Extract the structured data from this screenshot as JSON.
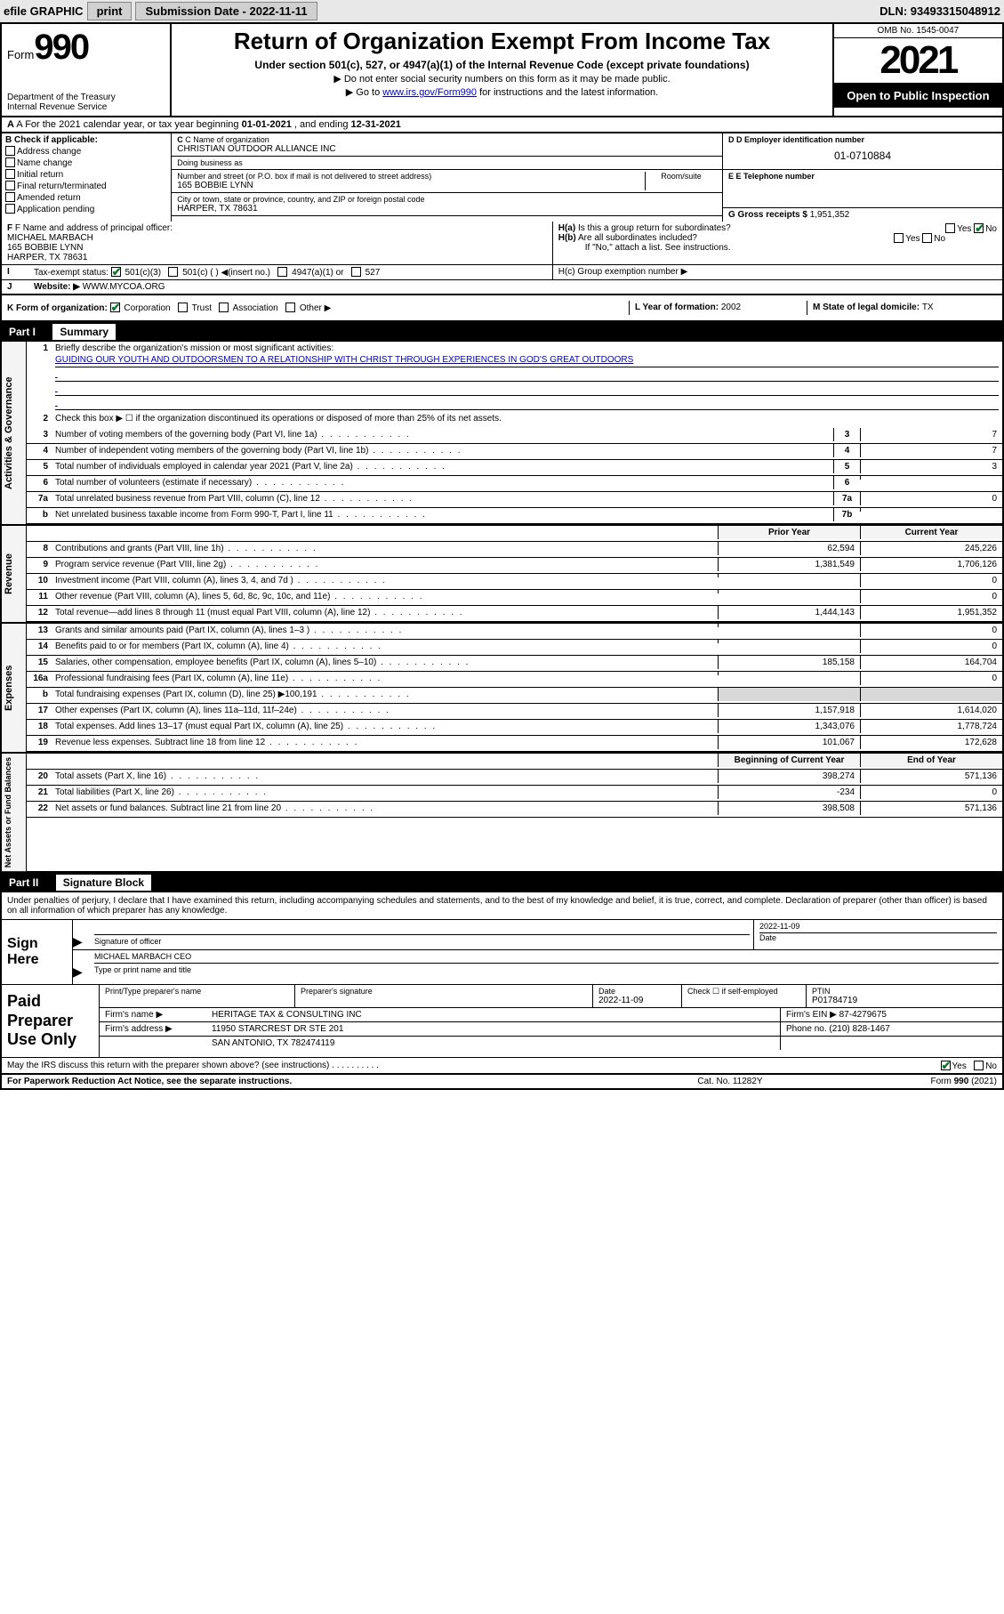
{
  "topbar": {
    "efile": "efile GRAPHIC",
    "print": "print",
    "submission_label": "Submission Date - 2022-11-11",
    "dln_label": "DLN: 93493315048912"
  },
  "header": {
    "form_prefix": "Form",
    "form_number": "990",
    "dept": "Department of the Treasury",
    "irs": "Internal Revenue Service",
    "title": "Return of Organization Exempt From Income Tax",
    "subtitle": "Under section 501(c), 527, or 4947(a)(1) of the Internal Revenue Code (except private foundations)",
    "no_ssn": "Do not enter social security numbers on this form as it may be made public.",
    "goto_pre": "Go to ",
    "goto_link": "www.irs.gov/Form990",
    "goto_post": " for instructions and the latest information.",
    "omb": "OMB No. 1545-0047",
    "year": "2021",
    "open": "Open to Public Inspection"
  },
  "row_a": {
    "pre": "A For the 2021 calendar year, or tax year beginning ",
    "begin": "01-01-2021",
    "mid": " , and ending ",
    "end": "12-31-2021"
  },
  "col_b": {
    "label": "B Check if applicable:",
    "items": [
      "Address change",
      "Name change",
      "Initial return",
      "Final return/terminated",
      "Amended return",
      "Application pending"
    ]
  },
  "col_c": {
    "name_label": "C Name of organization",
    "name": "CHRISTIAN OUTDOOR ALLIANCE INC",
    "dba_label": "Doing business as",
    "dba": "",
    "addr_label": "Number and street (or P.O. box if mail is not delivered to street address)",
    "room_label": "Room/suite",
    "addr": "165 BOBBIE LYNN",
    "city_label": "City or town, state or province, country, and ZIP or foreign postal code",
    "city": "HARPER, TX  78631"
  },
  "col_d": {
    "label": "D Employer identification number",
    "ein": "01-0710884",
    "phone_label": "E Telephone number",
    "phone": "",
    "gross_label": "G Gross receipts $",
    "gross": "1,951,352"
  },
  "row_f": {
    "label": "F Name and address of principal officer:",
    "name": "MICHAEL MARBACH",
    "addr1": "165 BOBBIE LYNN",
    "addr2": "HARPER, TX  78631"
  },
  "row_h": {
    "ha_label": "H(a)  Is this a group return for subordinates?",
    "ha_yes": "Yes",
    "ha_no": "No",
    "hb_label": "H(b)  Are all subordinates included?",
    "hb_yes": "Yes",
    "hb_no": "No",
    "hb_note": "If \"No,\" attach a list. See instructions.",
    "hc_label": "H(c)  Group exemption number ▶"
  },
  "row_i": {
    "label": "Tax-exempt status:",
    "opt1": "501(c)(3)",
    "opt2": "501(c) (  ) ◀(insert no.)",
    "opt3": "4947(a)(1) or",
    "opt4": "527"
  },
  "row_j": {
    "label": "Website: ▶",
    "value": "WWW.MYCOA.ORG"
  },
  "row_k": {
    "label": "K Form of organization:",
    "corp": "Corporation",
    "trust": "Trust",
    "assoc": "Association",
    "other": "Other ▶"
  },
  "row_l": {
    "label": "L Year of formation: ",
    "value": "2002"
  },
  "row_m": {
    "label": "M State of legal domicile: ",
    "value": "TX"
  },
  "part1": {
    "header": "Part I",
    "title": "Summary",
    "line1_label": "Briefly describe the organization's mission or most significant activities:",
    "line1_text": "GUIDING OUR YOUTH AND OUTDOORSMEN TO A RELATIONSHIP WITH CHRIST THROUGH EXPERIENCES IN GOD'S GREAT OUTDOORS",
    "line2": "Check this box ▶ ☐ if the organization discontinued its operations or disposed of more than 25% of its net assets.",
    "lines_gov": [
      {
        "n": "3",
        "t": "Number of voting members of the governing body (Part VI, line 1a)",
        "box": "3",
        "v": "7"
      },
      {
        "n": "4",
        "t": "Number of independent voting members of the governing body (Part VI, line 1b)",
        "box": "4",
        "v": "7"
      },
      {
        "n": "5",
        "t": "Total number of individuals employed in calendar year 2021 (Part V, line 2a)",
        "box": "5",
        "v": "3"
      },
      {
        "n": "6",
        "t": "Total number of volunteers (estimate if necessary)",
        "box": "6",
        "v": ""
      },
      {
        "n": "7a",
        "t": "Total unrelated business revenue from Part VIII, column (C), line 12",
        "box": "7a",
        "v": "0"
      },
      {
        "n": "b",
        "t": "Net unrelated business taxable income from Form 990-T, Part I, line 11",
        "box": "7b",
        "v": ""
      }
    ],
    "col_headers": {
      "prior": "Prior Year",
      "current": "Current Year"
    },
    "lines_rev": [
      {
        "n": "8",
        "t": "Contributions and grants (Part VIII, line 1h)",
        "p": "62,594",
        "c": "245,226"
      },
      {
        "n": "9",
        "t": "Program service revenue (Part VIII, line 2g)",
        "p": "1,381,549",
        "c": "1,706,126"
      },
      {
        "n": "10",
        "t": "Investment income (Part VIII, column (A), lines 3, 4, and 7d )",
        "p": "",
        "c": "0"
      },
      {
        "n": "11",
        "t": "Other revenue (Part VIII, column (A), lines 5, 6d, 8c, 9c, 10c, and 11e)",
        "p": "",
        "c": "0"
      },
      {
        "n": "12",
        "t": "Total revenue—add lines 8 through 11 (must equal Part VIII, column (A), line 12)",
        "p": "1,444,143",
        "c": "1,951,352"
      }
    ],
    "lines_exp": [
      {
        "n": "13",
        "t": "Grants and similar amounts paid (Part IX, column (A), lines 1–3 )",
        "p": "",
        "c": "0"
      },
      {
        "n": "14",
        "t": "Benefits paid to or for members (Part IX, column (A), line 4)",
        "p": "",
        "c": "0"
      },
      {
        "n": "15",
        "t": "Salaries, other compensation, employee benefits (Part IX, column (A), lines 5–10)",
        "p": "185,158",
        "c": "164,704"
      },
      {
        "n": "16a",
        "t": "Professional fundraising fees (Part IX, column (A), line 11e)",
        "p": "",
        "c": "0"
      },
      {
        "n": "b",
        "t": "Total fundraising expenses (Part IX, column (D), line 25) ▶100,191",
        "p": "SHADE",
        "c": "SHADE"
      },
      {
        "n": "17",
        "t": "Other expenses (Part IX, column (A), lines 11a–11d, 11f–24e)",
        "p": "1,157,918",
        "c": "1,614,020"
      },
      {
        "n": "18",
        "t": "Total expenses. Add lines 13–17 (must equal Part IX, column (A), line 25)",
        "p": "1,343,076",
        "c": "1,778,724"
      },
      {
        "n": "19",
        "t": "Revenue less expenses. Subtract line 18 from line 12",
        "p": "101,067",
        "c": "172,628"
      }
    ],
    "col_headers2": {
      "prior": "Beginning of Current Year",
      "current": "End of Year"
    },
    "lines_net": [
      {
        "n": "20",
        "t": "Total assets (Part X, line 16)",
        "p": "398,274",
        "c": "571,136"
      },
      {
        "n": "21",
        "t": "Total liabilities (Part X, line 26)",
        "p": "-234",
        "c": "0"
      },
      {
        "n": "22",
        "t": "Net assets or fund balances. Subtract line 21 from line 20",
        "p": "398,508",
        "c": "571,136"
      }
    ],
    "vtabs": {
      "gov": "Activities & Governance",
      "rev": "Revenue",
      "exp": "Expenses",
      "net": "Net Assets or Fund Balances"
    }
  },
  "part2": {
    "header": "Part II",
    "title": "Signature Block",
    "intro": "Under penalties of perjury, I declare that I have examined this return, including accompanying schedules and statements, and to the best of my knowledge and belief, it is true, correct, and complete. Declaration of preparer (other than officer) is based on all information of which preparer has any knowledge.",
    "sign_here": "Sign Here",
    "sig_officer": "Signature of officer",
    "sig_date_label": "Date",
    "sig_date": "2022-11-09",
    "officer_name": "MICHAEL MARBACH CEO",
    "officer_title_label": "Type or print name and title",
    "paid_label": "Paid Preparer Use Only",
    "prep_name_label": "Print/Type preparer's name",
    "prep_sig_label": "Preparer's signature",
    "prep_date_label": "Date",
    "prep_date": "2022-11-09",
    "prep_check_label": "Check ☐ if self-employed",
    "prep_ptin_label": "PTIN",
    "prep_ptin": "P01784719",
    "firm_name_label": "Firm's name    ▶",
    "firm_name": "HERITAGE TAX & CONSULTING INC",
    "firm_ein_label": "Firm's EIN ▶",
    "firm_ein": "87-4279675",
    "firm_addr_label": "Firm's address ▶",
    "firm_addr1": "11950 STARCREST DR STE 201",
    "firm_addr2": "SAN ANTONIO, TX  782474119",
    "firm_phone_label": "Phone no.",
    "firm_phone": "(210) 828-1467",
    "discuss": "May the IRS discuss this return with the preparer shown above? (see instructions)",
    "discuss_yes": "Yes",
    "discuss_no": "No"
  },
  "footer": {
    "left": "For Paperwork Reduction Act Notice, see the separate instructions.",
    "mid": "Cat. No. 11282Y",
    "right": "Form 990 (2021)"
  }
}
